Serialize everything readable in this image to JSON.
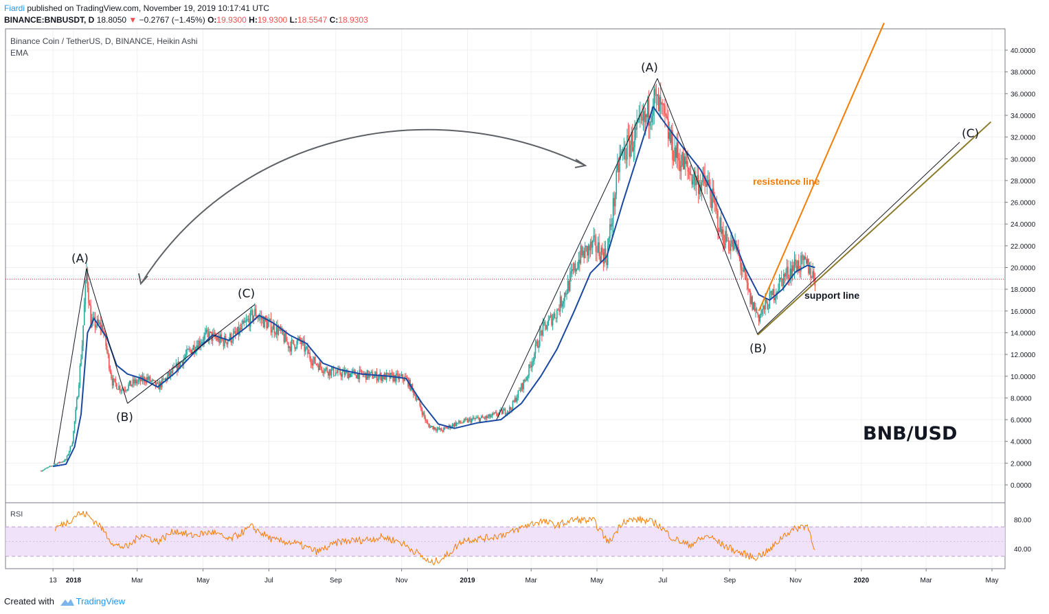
{
  "header": {
    "author": "Fiardi",
    "published": "published on TradingView.com, November 19, 2019 10:17:41 UTC",
    "symbol": "BINANCE:BNBUSDT, D",
    "last": "18.8050",
    "change": "−0.2767 (−1.45%)",
    "o_label": "O:",
    "o": "19.9300",
    "h_label": "H:",
    "h": "19.9300",
    "l_label": "L:",
    "l": "18.5547",
    "c_label": "C:",
    "c": "18.9303"
  },
  "legend": {
    "title": "Binance Coin / TetherUS, D, BINANCE, Heikin Ashi",
    "ema": "EMA"
  },
  "colors": {
    "up": "#26a69a",
    "down": "#ef5350",
    "ema": "#1848a0",
    "resistance": "#f57c00",
    "support": "#8a7a2a",
    "rsi": "#f57c00",
    "rsi_band": "#e9d5f7",
    "price_line": "#c62828"
  },
  "annotations": {
    "wave_a1": "(A)",
    "wave_b1": "(B)",
    "wave_c1": "(C)",
    "wave_a2": "(A)",
    "wave_b2": "(B)",
    "wave_c2": "(C)",
    "resistance_label": "resistence line",
    "support_label": "support line",
    "pair": "BNB/USD"
  },
  "rsi": {
    "label": "RSI",
    "ticks": [
      "80.00",
      "40.00"
    ]
  },
  "footer": {
    "created_with": "Created with",
    "brand": "TradingView"
  },
  "chart_data": {
    "type": "candlestick",
    "title": "Binance Coin / TetherUS, D, BINANCE, Heikin Ashi",
    "y_ticks": [
      0,
      2,
      4,
      6,
      8,
      10,
      12,
      14,
      16,
      18,
      20,
      22,
      24,
      26,
      28,
      30,
      32,
      34,
      36,
      38,
      40
    ],
    "y_tick_labels": [
      "0.0000",
      "2.0000",
      "4.0000",
      "6.0000",
      "8.0000",
      "10.0000",
      "12.0000",
      "14.0000",
      "16.0000",
      "18.0000",
      "20.0000",
      "22.0000",
      "24.0000",
      "26.0000",
      "28.0000",
      "30.0000",
      "32.0000",
      "34.0000",
      "36.0000",
      "38.0000",
      "40.0000"
    ],
    "ylim": [
      -2,
      42.5
    ],
    "x_ticks": [
      {
        "label": "13",
        "date": "2017-12-13"
      },
      {
        "label": "2018",
        "date": "2018-01-01"
      },
      {
        "label": "Mar",
        "date": "2018-03-01"
      },
      {
        "label": "May",
        "date": "2018-05-01"
      },
      {
        "label": "Jul",
        "date": "2018-07-01"
      },
      {
        "label": "Sep",
        "date": "2018-09-01"
      },
      {
        "label": "Nov",
        "date": "2018-11-01"
      },
      {
        "label": "2019",
        "date": "2019-01-01"
      },
      {
        "label": "Mar",
        "date": "2019-03-01"
      },
      {
        "label": "May",
        "date": "2019-05-01"
      },
      {
        "label": "Jul",
        "date": "2019-07-01"
      },
      {
        "label": "Sep",
        "date": "2019-09-01"
      },
      {
        "label": "Nov",
        "date": "2019-11-01"
      },
      {
        "label": "2020",
        "date": "2020-01-01"
      },
      {
        "label": "Mar",
        "date": "2020-03-01"
      },
      {
        "label": "May",
        "date": "2020-05-01"
      }
    ],
    "xlim": [
      "2017-12-02",
      "2020-05-15"
    ],
    "last_price": 18.93,
    "price_path": [
      [
        "2017-12-02",
        1.3
      ],
      [
        "2017-12-15",
        1.9
      ],
      [
        "2017-12-25",
        2.3
      ],
      [
        "2017-12-31",
        4.0
      ],
      [
        "2018-01-05",
        8.5
      ],
      [
        "2018-01-09",
        13.0
      ],
      [
        "2018-01-13",
        19.8
      ],
      [
        "2018-01-17",
        15.0
      ],
      [
        "2018-01-28",
        14.5
      ],
      [
        "2018-02-06",
        9.5
      ],
      [
        "2018-02-15",
        8.8
      ],
      [
        "2018-02-26",
        9.4
      ],
      [
        "2018-03-10",
        9.8
      ],
      [
        "2018-03-20",
        9.0
      ],
      [
        "2018-04-05",
        10.6
      ],
      [
        "2018-04-20",
        12.5
      ],
      [
        "2018-05-05",
        13.8
      ],
      [
        "2018-05-20",
        13.2
      ],
      [
        "2018-06-01",
        13.8
      ],
      [
        "2018-06-18",
        15.8
      ],
      [
        "2018-06-27",
        15.0
      ],
      [
        "2018-07-10",
        14.2
      ],
      [
        "2018-07-20",
        12.8
      ],
      [
        "2018-07-30",
        13.2
      ],
      [
        "2018-08-10",
        11.5
      ],
      [
        "2018-08-22",
        10.6
      ],
      [
        "2018-09-02",
        10.3
      ],
      [
        "2018-09-20",
        10.2
      ],
      [
        "2018-10-10",
        10.0
      ],
      [
        "2018-11-05",
        9.8
      ],
      [
        "2018-11-15",
        8.0
      ],
      [
        "2018-11-25",
        5.5
      ],
      [
        "2018-12-08",
        5.0
      ],
      [
        "2018-12-20",
        5.6
      ],
      [
        "2019-01-05",
        6.0
      ],
      [
        "2019-01-20",
        6.2
      ],
      [
        "2019-02-10",
        7.0
      ],
      [
        "2019-02-25",
        10.0
      ],
      [
        "2019-03-10",
        14.0
      ],
      [
        "2019-03-25",
        16.0
      ],
      [
        "2019-04-05",
        18.5
      ],
      [
        "2019-04-15",
        21.0
      ],
      [
        "2019-04-28",
        22.0
      ],
      [
        "2019-05-10",
        21.0
      ],
      [
        "2019-05-22",
        30.0
      ],
      [
        "2019-06-05",
        32.0
      ],
      [
        "2019-06-15",
        33.5
      ],
      [
        "2019-06-22",
        35.5
      ],
      [
        "2019-07-01",
        34.0
      ],
      [
        "2019-07-10",
        31.0
      ],
      [
        "2019-07-20",
        29.5
      ],
      [
        "2019-08-01",
        28.0
      ],
      [
        "2019-08-12",
        27.5
      ],
      [
        "2019-08-25",
        23.0
      ],
      [
        "2019-09-08",
        21.5
      ],
      [
        "2019-09-20",
        17.0
      ],
      [
        "2019-09-28",
        15.5
      ],
      [
        "2019-10-08",
        17.0
      ],
      [
        "2019-10-20",
        19.0
      ],
      [
        "2019-11-01",
        20.3
      ],
      [
        "2019-11-12",
        20.2
      ],
      [
        "2019-11-19",
        18.9
      ]
    ],
    "ema_path": [
      [
        "2017-12-13",
        1.7
      ],
      [
        "2017-12-25",
        1.9
      ],
      [
        "2018-01-02",
        3.5
      ],
      [
        "2018-01-08",
        6.5
      ],
      [
        "2018-01-14",
        14.0
      ],
      [
        "2018-01-20",
        15.3
      ],
      [
        "2018-02-01",
        13.5
      ],
      [
        "2018-02-10",
        11.0
      ],
      [
        "2018-02-20",
        10.2
      ],
      [
        "2018-03-05",
        9.8
      ],
      [
        "2018-03-20",
        9.0
      ],
      [
        "2018-04-05",
        10.3
      ],
      [
        "2018-04-25",
        12.4
      ],
      [
        "2018-05-10",
        13.8
      ],
      [
        "2018-05-25",
        13.3
      ],
      [
        "2018-06-10",
        14.5
      ],
      [
        "2018-06-22",
        15.6
      ],
      [
        "2018-07-05",
        14.9
      ],
      [
        "2018-07-20",
        13.8
      ],
      [
        "2018-08-05",
        13.0
      ],
      [
        "2018-08-20",
        11.2
      ],
      [
        "2018-09-05",
        10.6
      ],
      [
        "2018-09-25",
        10.2
      ],
      [
        "2018-10-20",
        10.0
      ],
      [
        "2018-11-05",
        9.8
      ],
      [
        "2018-11-20",
        7.5
      ],
      [
        "2018-12-05",
        5.6
      ],
      [
        "2018-12-20",
        5.2
      ],
      [
        "2019-01-10",
        5.7
      ],
      [
        "2019-02-01",
        6.0
      ],
      [
        "2019-02-20",
        7.5
      ],
      [
        "2019-03-10",
        10.0
      ],
      [
        "2019-03-25",
        12.5
      ],
      [
        "2019-04-10",
        16.0
      ],
      [
        "2019-04-25",
        19.5
      ],
      [
        "2019-05-10",
        21.0
      ],
      [
        "2019-05-25",
        26.0
      ],
      [
        "2019-06-10",
        31.0
      ],
      [
        "2019-06-22",
        34.8
      ],
      [
        "2019-07-05",
        33.0
      ],
      [
        "2019-07-20",
        31.0
      ],
      [
        "2019-08-05",
        29.0
      ],
      [
        "2019-08-18",
        26.5
      ],
      [
        "2019-09-01",
        23.5
      ],
      [
        "2019-09-15",
        20.0
      ],
      [
        "2019-09-28",
        17.5
      ],
      [
        "2019-10-08",
        17.0
      ],
      [
        "2019-10-20",
        18.0
      ],
      [
        "2019-11-01",
        19.6
      ],
      [
        "2019-11-12",
        20.2
      ],
      [
        "2019-11-19",
        20.0
      ]
    ],
    "wave_lines": [
      [
        [
          "2017-12-14",
          1.9
        ],
        [
          "2018-01-13",
          19.9
        ]
      ],
      [
        [
          "2018-01-13",
          19.9
        ],
        [
          "2018-02-20",
          7.5
        ]
      ],
      [
        [
          "2018-02-20",
          7.5
        ],
        [
          "2018-06-18",
          16.6
        ]
      ],
      [
        [
          "2019-01-28",
          6.0
        ],
        [
          "2019-06-26",
          37.4
        ]
      ],
      [
        [
          "2019-06-26",
          37.4
        ],
        [
          "2019-09-27",
          13.8
        ]
      ]
    ],
    "resistance_line": [
      [
        "2019-09-28",
        16.0
      ],
      [
        "2020-01-22",
        42.5
      ]
    ],
    "support_line": [
      [
        "2019-09-27",
        13.8
      ],
      [
        "2020-04-30",
        33.4
      ]
    ],
    "rsi": {
      "ylim": [
        15,
        100
      ],
      "band": [
        30,
        70
      ],
      "ticks": [
        80,
        40
      ],
      "path": [
        [
          "2017-12-15",
          68
        ],
        [
          "2017-12-28",
          78
        ],
        [
          "2018-01-05",
          88
        ],
        [
          "2018-01-13",
          87
        ],
        [
          "2018-01-25",
          72
        ],
        [
          "2018-02-08",
          45
        ],
        [
          "2018-02-20",
          42
        ],
        [
          "2018-03-05",
          60
        ],
        [
          "2018-03-20",
          50
        ],
        [
          "2018-04-05",
          65
        ],
        [
          "2018-04-20",
          58
        ],
        [
          "2018-05-10",
          63
        ],
        [
          "2018-05-25",
          52
        ],
        [
          "2018-06-15",
          70
        ],
        [
          "2018-07-05",
          52
        ],
        [
          "2018-07-25",
          48
        ],
        [
          "2018-08-15",
          36
        ],
        [
          "2018-09-05",
          50
        ],
        [
          "2018-09-25",
          52
        ],
        [
          "2018-10-15",
          56
        ],
        [
          "2018-10-30",
          50
        ],
        [
          "2018-11-15",
          35
        ],
        [
          "2018-11-28",
          20
        ],
        [
          "2018-12-12",
          30
        ],
        [
          "2018-12-28",
          52
        ],
        [
          "2019-01-20",
          55
        ],
        [
          "2019-02-10",
          62
        ],
        [
          "2019-02-25",
          72
        ],
        [
          "2019-03-10",
          78
        ],
        [
          "2019-03-25",
          72
        ],
        [
          "2019-04-10",
          80
        ],
        [
          "2019-04-28",
          78
        ],
        [
          "2019-05-12",
          48
        ],
        [
          "2019-05-25",
          78
        ],
        [
          "2019-06-10",
          80
        ],
        [
          "2019-06-25",
          75
        ],
        [
          "2019-07-10",
          55
        ],
        [
          "2019-07-25",
          45
        ],
        [
          "2019-08-12",
          58
        ],
        [
          "2019-08-25",
          46
        ],
        [
          "2019-09-10",
          35
        ],
        [
          "2019-09-24",
          28
        ],
        [
          "2019-10-08",
          38
        ],
        [
          "2019-10-22",
          60
        ],
        [
          "2019-11-05",
          70
        ],
        [
          "2019-11-12",
          72
        ],
        [
          "2019-11-19",
          40
        ]
      ]
    }
  }
}
